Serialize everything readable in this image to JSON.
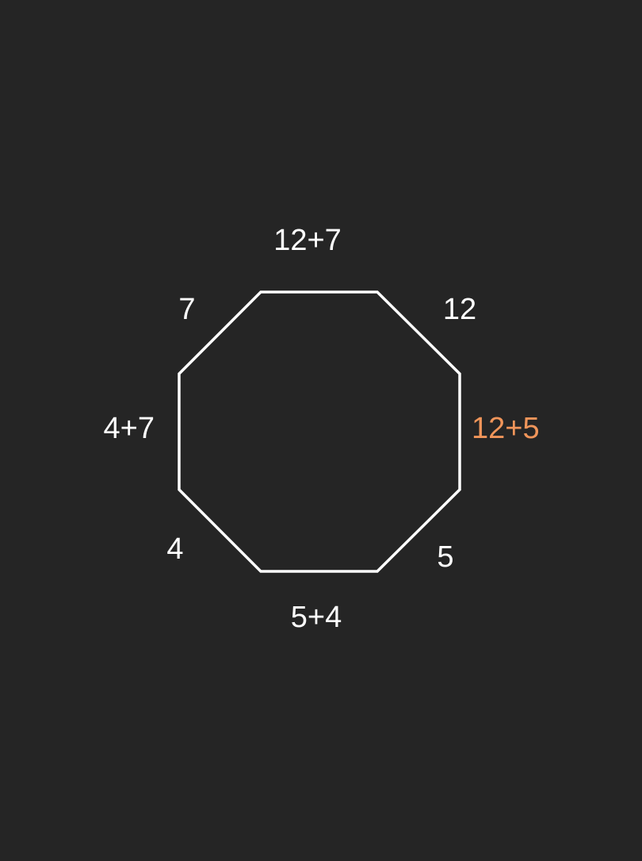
{
  "colors": {
    "background": "#252525",
    "stroke": "#ffffff",
    "text": "#ffffff",
    "highlight": "#f0955a"
  },
  "octagon": {
    "sides": [
      {
        "id": "top",
        "label": "12+7",
        "highlight": false
      },
      {
        "id": "top-right",
        "label": "12",
        "highlight": false
      },
      {
        "id": "right",
        "label": "12+5",
        "highlight": true
      },
      {
        "id": "bottom-right",
        "label": "5",
        "highlight": false
      },
      {
        "id": "bottom",
        "label": "5+4",
        "highlight": false
      },
      {
        "id": "bottom-left",
        "label": "4",
        "highlight": false
      },
      {
        "id": "left",
        "label": "4+7",
        "highlight": false
      },
      {
        "id": "top-left",
        "label": "7",
        "highlight": false
      }
    ]
  }
}
